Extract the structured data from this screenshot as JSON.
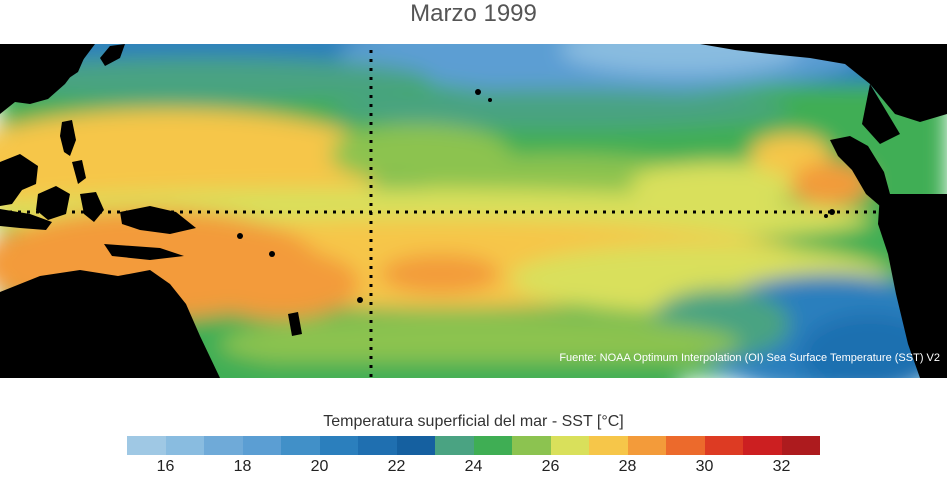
{
  "title": "Marzo 1999",
  "source": "Fuente: NOAA Optimum Interpolation (OI) Sea Surface Temperature (SST) V2",
  "colorbar": {
    "title": "Temperatura superficial del mar - SST  [°C]",
    "tick_labels": [
      "16",
      "18",
      "20",
      "22",
      "24",
      "26",
      "28",
      "30",
      "32"
    ],
    "tick_values": [
      16,
      18,
      20,
      22,
      24,
      26,
      28,
      30,
      32
    ],
    "range": [
      15,
      33
    ],
    "colors": [
      "#9fc8e4",
      "#89bce0",
      "#6faad8",
      "#5b9ed3",
      "#4190c8",
      "#2b7fbd",
      "#1f6fb0",
      "#1560a0",
      "#4aa382",
      "#3fae54",
      "#8cc350",
      "#d9e05b",
      "#f6c649",
      "#f39b3a",
      "#ec6a2c",
      "#dd3b23",
      "#cc1f21",
      "#ad1b1e"
    ]
  },
  "colors": {
    "land": "#000000",
    "equator_line": "#000000"
  }
}
